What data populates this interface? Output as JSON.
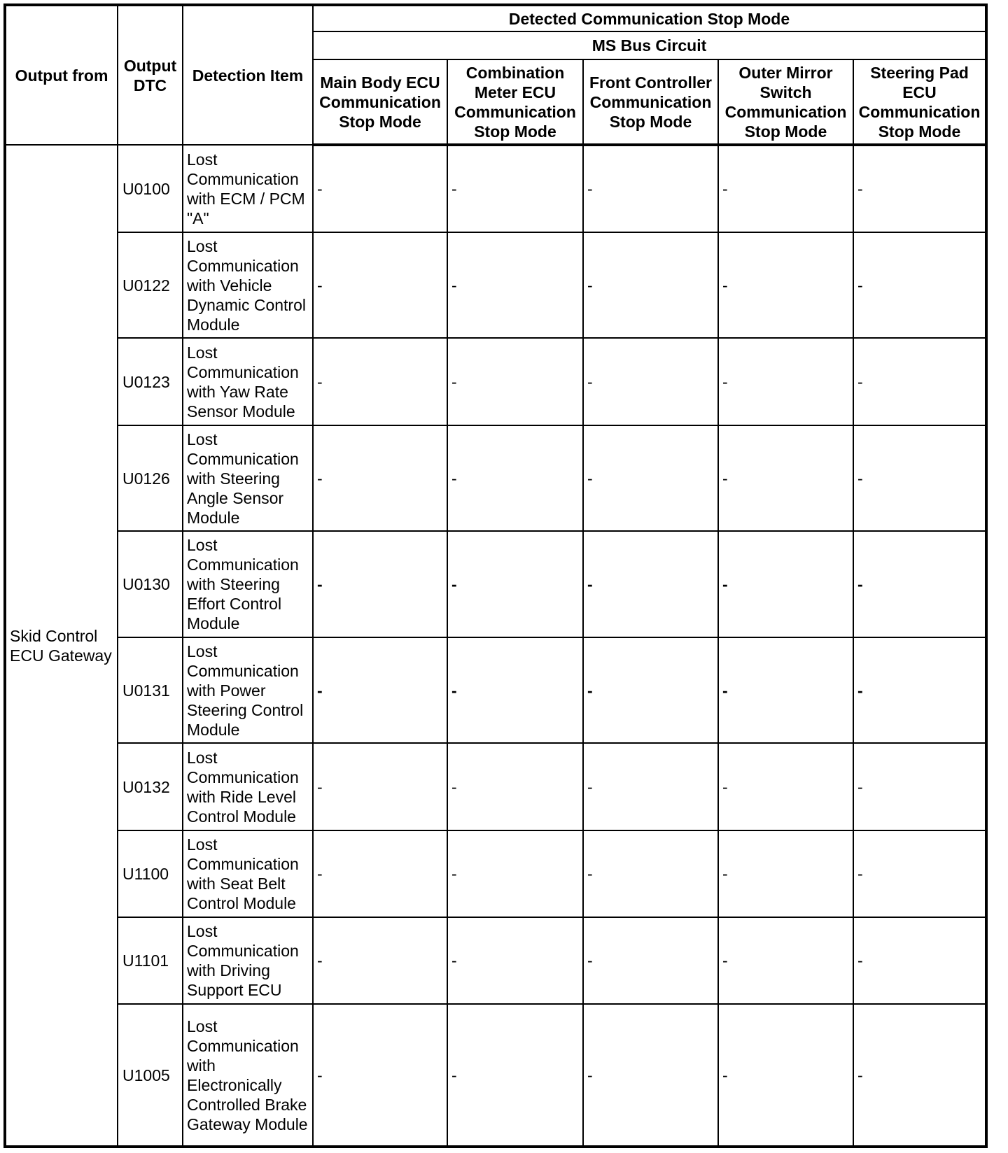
{
  "header": {
    "output_from": "Output from",
    "output_dtc": "Output DTC",
    "detection_item": "Detection Item",
    "group": "Detected Communication Stop Mode",
    "subgroup": "MS Bus Circuit",
    "modes": [
      "Main Body ECU Communication Stop Mode",
      "Combination Meter ECU Communication Stop Mode",
      "Front Controller Communication Stop Mode",
      "Outer Mirror Switch Communication Stop Mode",
      "Steering Pad ECU Communication Stop Mode"
    ]
  },
  "output_from": "Skid Control ECU Gateway",
  "rows": [
    {
      "dtc": "U0100",
      "item": "Lost Communication with ECM / PCM \"A\"",
      "values": [
        "-",
        "-",
        "-",
        "-",
        "-"
      ],
      "bold": false
    },
    {
      "dtc": "U0122",
      "item": "Lost Communication with Vehicle Dynamic Control Module",
      "values": [
        "-",
        "-",
        "-",
        "-",
        "-"
      ],
      "bold": false
    },
    {
      "dtc": "U0123",
      "item": "Lost Communication with Yaw Rate Sensor Module",
      "values": [
        "-",
        "-",
        "-",
        "-",
        "-"
      ],
      "bold": false
    },
    {
      "dtc": "U0126",
      "item": "Lost Communication with Steering Angle Sensor Module",
      "values": [
        "-",
        "-",
        "-",
        "-",
        "-"
      ],
      "bold": false
    },
    {
      "dtc": "U0130",
      "item": "Lost Communication with Steering Effort Control Module",
      "values": [
        "-",
        "-",
        "-",
        "-",
        "-"
      ],
      "bold": true
    },
    {
      "dtc": "U0131",
      "item": "Lost Communication with Power Steering Control Module",
      "values": [
        "-",
        "-",
        "-",
        "-",
        "-"
      ],
      "bold": true
    },
    {
      "dtc": "U0132",
      "item": "Lost Communication with Ride Level Control Module",
      "values": [
        "-",
        "-",
        "-",
        "-",
        "-"
      ],
      "bold": false
    },
    {
      "dtc": "U1100",
      "item": "Lost Communication with Seat Belt Control Module",
      "values": [
        "-",
        "-",
        "-",
        "-",
        "-"
      ],
      "bold": false
    },
    {
      "dtc": "U1101",
      "item": "Lost Communication with Driving Support ECU",
      "values": [
        "-",
        "-",
        "-",
        "-",
        "-"
      ],
      "bold": false
    },
    {
      "dtc": "U1005",
      "item": "Lost Communication with Electronically Controlled Brake Gateway Module",
      "values": [
        "-",
        "-",
        "-",
        "-",
        "-"
      ],
      "bold": false
    }
  ]
}
